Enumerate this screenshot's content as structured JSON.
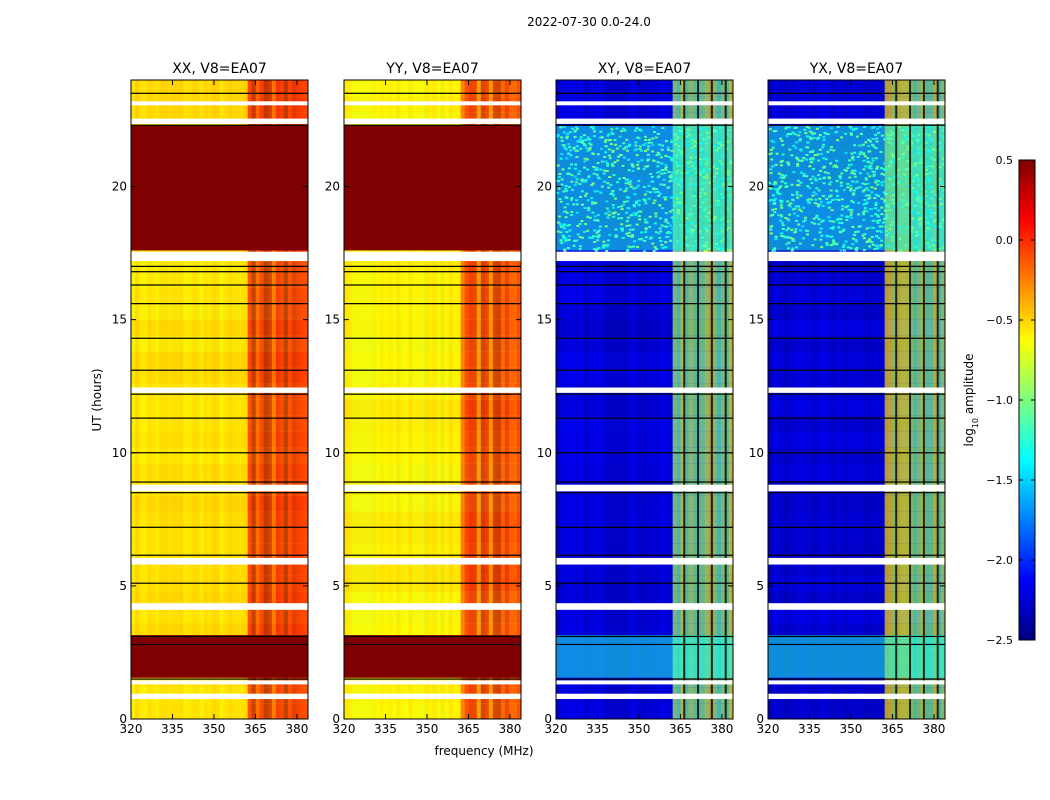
{
  "figure": {
    "suptitle": "2022-07-30 0.0-24.0",
    "xlabel": "frequency (MHz)",
    "ylabel": "UT (hours)"
  },
  "colorbar": {
    "label_main": "log",
    "label_sub": "10",
    "label_tail": " amplitude",
    "range": [
      -2.5,
      0.5
    ],
    "ticks": [
      "0.5",
      "0.0",
      "−0.5",
      "−1.0",
      "−1.5",
      "−2.0",
      "−2.5"
    ],
    "tick_values": [
      0.5,
      0.0,
      -0.5,
      -1.0,
      -1.5,
      -2.0,
      -2.5
    ],
    "colormap": "jet",
    "colormap_stops": [
      "#00007f",
      "#0000ff",
      "#007fff",
      "#00ffff",
      "#7fff7f",
      "#ffff00",
      "#ff7f00",
      "#ff0000",
      "#7f0000"
    ]
  },
  "chart_data": [
    {
      "type": "heatmap",
      "title": "XX, V8=EA07",
      "x_ticks": [
        "320",
        "335",
        "350",
        "365",
        "380"
      ],
      "x_tick_values": [
        320,
        335,
        350,
        365,
        380
      ],
      "y_ticks": [
        "0",
        "5",
        "10",
        "15",
        "20"
      ],
      "y_tick_values": [
        0,
        5,
        10,
        15,
        20
      ],
      "xlim": [
        320,
        384
      ],
      "ylim": [
        0,
        24
      ],
      "band_mhz": [
        361,
        383
      ],
      "base_level": -0.55,
      "band_level": 0.15,
      "flag_level": 0.5,
      "noisy": false
    },
    {
      "type": "heatmap",
      "title": "YY, V8=EA07",
      "x_ticks": [
        "320",
        "335",
        "350",
        "365",
        "380"
      ],
      "x_tick_values": [
        320,
        335,
        350,
        365,
        380
      ],
      "y_ticks": [
        "0",
        "5",
        "10",
        "15",
        "20"
      ],
      "y_tick_values": [
        0,
        5,
        10,
        15,
        20
      ],
      "xlim": [
        320,
        384
      ],
      "ylim": [
        0,
        24
      ],
      "band_mhz": [
        361,
        383
      ],
      "base_level": -0.6,
      "band_level": 0.05,
      "flag_level": 0.5,
      "noisy": false
    },
    {
      "type": "heatmap",
      "title": "XY, V8=EA07",
      "x_ticks": [
        "320",
        "335",
        "350",
        "365",
        "380"
      ],
      "x_tick_values": [
        320,
        335,
        350,
        365,
        380
      ],
      "y_ticks": [
        "0",
        "5",
        "10",
        "15",
        "20"
      ],
      "y_tick_values": [
        0,
        5,
        10,
        15,
        20
      ],
      "xlim": [
        320,
        384
      ],
      "ylim": [
        0,
        24
      ],
      "band_mhz": [
        361,
        383
      ],
      "base_level": -2.25,
      "band_level": -0.8,
      "flag_level": -1.3,
      "noisy": true
    },
    {
      "type": "heatmap",
      "title": "YX, V8=EA07",
      "x_ticks": [
        "320",
        "335",
        "350",
        "365",
        "380"
      ],
      "x_tick_values": [
        320,
        335,
        350,
        365,
        380
      ],
      "y_ticks": [
        "0",
        "5",
        "10",
        "15",
        "20"
      ],
      "y_tick_values": [
        0,
        5,
        10,
        15,
        20
      ],
      "xlim": [
        320,
        384
      ],
      "ylim": [
        0,
        24
      ],
      "band_mhz": [
        361,
        383
      ],
      "base_level": -2.25,
      "band_level": -0.8,
      "flag_level": -1.3,
      "noisy": true
    }
  ],
  "flagged_hours": {
    "white_gaps": [
      [
        0.75,
        0.95
      ],
      [
        1.3,
        1.45
      ],
      [
        4.1,
        4.35
      ],
      [
        5.8,
        6.05
      ],
      [
        8.55,
        8.8
      ],
      [
        12.25,
        12.45
      ],
      [
        17.2,
        17.55
      ],
      [
        22.35,
        22.55
      ],
      [
        23.05,
        23.2
      ]
    ],
    "black_lines": [
      0.9,
      1.5,
      2.8,
      3.1,
      5.1,
      6.15,
      7.2,
      8.5,
      8.9,
      10.0,
      11.3,
      12.2,
      13.1,
      14.3,
      15.6,
      16.3,
      16.8,
      17.0,
      22.3,
      23.5
    ],
    "saturated_blocks": [
      [
        1.55,
        3.15
      ],
      [
        17.6,
        22.3
      ]
    ]
  }
}
